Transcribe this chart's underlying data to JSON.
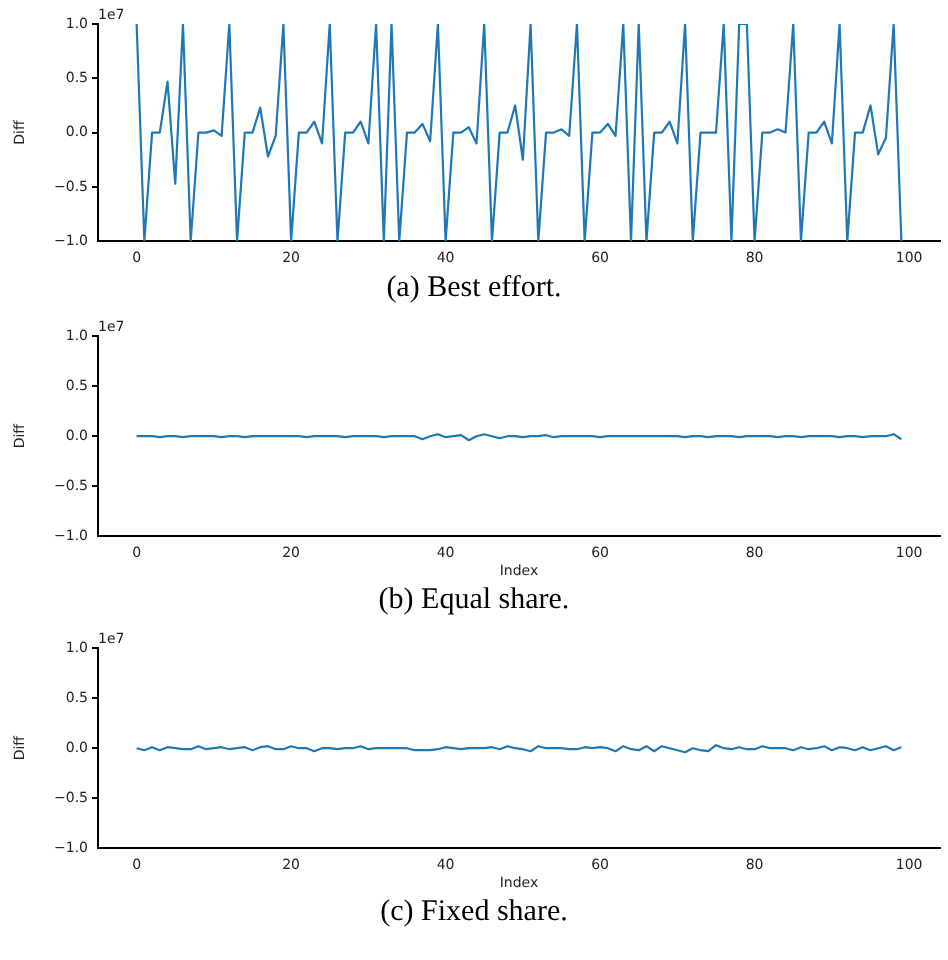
{
  "chart_data": [
    {
      "type": "line",
      "title": "(a) Best effort.",
      "ylabel": "Diff",
      "annotations": [
        "1e7"
      ],
      "marker": "none",
      "grid": false,
      "legend": false,
      "xlim": [
        -5,
        104
      ],
      "xticks": [
        0,
        20,
        40,
        60,
        80,
        100
      ],
      "ylim": [
        -1,
        1
      ],
      "yticks": [
        {
          "value": -1,
          "label": "−1.0"
        },
        {
          "value": -0.5,
          "label": "−0.5"
        },
        {
          "value": 0,
          "label": "0.0"
        },
        {
          "value": 0.5,
          "label": "0.5"
        },
        {
          "value": 1,
          "label": "1.0"
        }
      ],
      "x": [
        0,
        1,
        2,
        3,
        4,
        5,
        6,
        7,
        8,
        9,
        10,
        11,
        12,
        13,
        14,
        15,
        16,
        17,
        18,
        19,
        20,
        21,
        22,
        23,
        24,
        25,
        26,
        27,
        28,
        29,
        30,
        31,
        32,
        33,
        34,
        35,
        36,
        37,
        38,
        39,
        40,
        41,
        42,
        43,
        44,
        45,
        46,
        47,
        48,
        49,
        50,
        51,
        52,
        53,
        54,
        55,
        56,
        57,
        58,
        59,
        60,
        61,
        62,
        63,
        64,
        65,
        66,
        67,
        68,
        69,
        70,
        71,
        72,
        73,
        74,
        75,
        76,
        77,
        78,
        79,
        80,
        81,
        82,
        83,
        84,
        85,
        86,
        87,
        88,
        89,
        90,
        91,
        92,
        93,
        94,
        95,
        96,
        97,
        98,
        99
      ],
      "series": [
        {
          "color": "#1f77b4",
          "values": [
            1,
            -1,
            0,
            0,
            0.47,
            -0.47,
            1,
            -1,
            0,
            0,
            0.02,
            -0.03,
            1,
            -1,
            0,
            0,
            0.23,
            -0.22,
            -0.03,
            1,
            -1,
            0,
            0,
            0.1,
            -0.1,
            1,
            -1,
            0,
            0,
            0.1,
            -0.1,
            1,
            -1,
            1,
            -1,
            0,
            0,
            0.08,
            -0.08,
            1,
            -1,
            0,
            0,
            0.05,
            -0.1,
            1,
            -1,
            0,
            0,
            0.25,
            -0.25,
            1,
            -1,
            0,
            0,
            0.03,
            -0.03,
            1,
            -1,
            0,
            0,
            0.08,
            -0.03,
            1,
            -1,
            1,
            -1,
            0,
            0,
            0.1,
            -0.1,
            1,
            -1,
            0,
            0,
            0,
            1,
            -1,
            1,
            1,
            -1,
            0,
            0,
            0.03,
            0,
            1,
            -1,
            0,
            0,
            0.1,
            -0.1,
            1,
            -1,
            0,
            0,
            0.25,
            -0.2,
            -0.05,
            1,
            -1
          ]
        }
      ]
    },
    {
      "type": "line",
      "title": "(b) Equal share.",
      "xlabel": "Index",
      "ylabel": "Diff",
      "annotations": [
        "1e7"
      ],
      "marker": "none",
      "grid": false,
      "legend": false,
      "xlim": [
        -5,
        104
      ],
      "xticks": [
        0,
        20,
        40,
        60,
        80,
        100
      ],
      "ylim": [
        -1,
        1
      ],
      "yticks": [
        {
          "value": -1,
          "label": "−1.0"
        },
        {
          "value": -0.5,
          "label": "−0.5"
        },
        {
          "value": 0,
          "label": "0.0"
        },
        {
          "value": 0.5,
          "label": "0.5"
        },
        {
          "value": 1,
          "label": "1.0"
        }
      ],
      "x": [
        0,
        1,
        2,
        3,
        4,
        5,
        6,
        7,
        8,
        9,
        10,
        11,
        12,
        13,
        14,
        15,
        16,
        17,
        18,
        19,
        20,
        21,
        22,
        23,
        24,
        25,
        26,
        27,
        28,
        29,
        30,
        31,
        32,
        33,
        34,
        35,
        36,
        37,
        38,
        39,
        40,
        41,
        42,
        43,
        44,
        45,
        46,
        47,
        48,
        49,
        50,
        51,
        52,
        53,
        54,
        55,
        56,
        57,
        58,
        59,
        60,
        61,
        62,
        63,
        64,
        65,
        66,
        67,
        68,
        69,
        70,
        71,
        72,
        73,
        74,
        75,
        76,
        77,
        78,
        79,
        80,
        81,
        82,
        83,
        84,
        85,
        86,
        87,
        88,
        89,
        90,
        91,
        92,
        93,
        94,
        95,
        96,
        97,
        98,
        99
      ],
      "series": [
        {
          "color": "#1f77b4",
          "values": [
            0,
            0,
            0,
            -0.01,
            0,
            0,
            -0.01,
            0,
            0,
            0,
            0,
            -0.01,
            0,
            0,
            -0.01,
            0,
            0,
            0,
            0,
            0,
            0,
            0,
            -0.01,
            0,
            0,
            0,
            0,
            -0.01,
            0,
            0,
            0,
            0,
            -0.01,
            0,
            0,
            0,
            0,
            -0.03,
            0,
            0.02,
            -0.01,
            0,
            0.01,
            -0.04,
            0,
            0.02,
            0,
            -0.02,
            0,
            0,
            -0.01,
            0,
            0,
            0.01,
            -0.01,
            0,
            0,
            0,
            0,
            0,
            -0.01,
            0,
            0,
            0,
            0,
            0,
            0,
            0,
            0,
            0,
            0,
            -0.01,
            0,
            0,
            -0.01,
            0,
            0,
            0,
            -0.01,
            0,
            0,
            0,
            0,
            -0.01,
            0,
            0,
            -0.01,
            0,
            0,
            0,
            0,
            -0.01,
            0,
            0,
            -0.01,
            0,
            0,
            0,
            0.02,
            -0.03
          ]
        }
      ]
    },
    {
      "type": "line",
      "title": "(c) Fixed share.",
      "xlabel": "Index",
      "ylabel": "Diff",
      "annotations": [
        "1e7"
      ],
      "marker": "none",
      "grid": false,
      "legend": false,
      "xlim": [
        -5,
        104
      ],
      "xticks": [
        0,
        20,
        40,
        60,
        80,
        100
      ],
      "ylim": [
        -1,
        1
      ],
      "yticks": [
        {
          "value": -1,
          "label": "−1.0"
        },
        {
          "value": -0.5,
          "label": "−0.5"
        },
        {
          "value": 0,
          "label": "0.0"
        },
        {
          "value": 0.5,
          "label": "0.5"
        },
        {
          "value": 1,
          "label": "1.0"
        }
      ],
      "x": [
        0,
        1,
        2,
        3,
        4,
        5,
        6,
        7,
        8,
        9,
        10,
        11,
        12,
        13,
        14,
        15,
        16,
        17,
        18,
        19,
        20,
        21,
        22,
        23,
        24,
        25,
        26,
        27,
        28,
        29,
        30,
        31,
        32,
        33,
        34,
        35,
        36,
        37,
        38,
        39,
        40,
        41,
        42,
        43,
        44,
        45,
        46,
        47,
        48,
        49,
        50,
        51,
        52,
        53,
        54,
        55,
        56,
        57,
        58,
        59,
        60,
        61,
        62,
        63,
        64,
        65,
        66,
        67,
        68,
        69,
        70,
        71,
        72,
        73,
        74,
        75,
        76,
        77,
        78,
        79,
        80,
        81,
        82,
        83,
        84,
        85,
        86,
        87,
        88,
        89,
        90,
        91,
        92,
        93,
        94,
        95,
        96,
        97,
        98,
        99
      ],
      "series": [
        {
          "color": "#1f77b4",
          "values": [
            0,
            -0.02,
            0.01,
            -0.02,
            0.01,
            0,
            -0.01,
            -0.01,
            0.02,
            -0.01,
            0,
            0.01,
            -0.01,
            0,
            0.01,
            -0.02,
            0.01,
            0.02,
            -0.01,
            -0.01,
            0.02,
            0,
            0,
            -0.03,
            0,
            0,
            -0.01,
            0,
            0,
            0.02,
            -0.01,
            0,
            0,
            0,
            0,
            0,
            -0.02,
            -0.02,
            -0.02,
            -0.01,
            0.01,
            0,
            -0.01,
            0,
            0,
            0,
            0.01,
            -0.01,
            0.02,
            0,
            -0.01,
            -0.03,
            0.02,
            0,
            0,
            0,
            -0.01,
            -0.01,
            0.01,
            0,
            0.01,
            0,
            -0.03,
            0.02,
            -0.01,
            -0.02,
            0.02,
            -0.03,
            0.02,
            0,
            -0.02,
            -0.04,
            0,
            -0.02,
            -0.03,
            0.03,
            0,
            -0.01,
            0.01,
            -0.01,
            -0.01,
            0.02,
            0,
            0,
            0,
            -0.02,
            0.01,
            -0.01,
            0,
            0.02,
            -0.02,
            0.01,
            0,
            -0.02,
            0.01,
            -0.02,
            0,
            0.02,
            -0.02,
            0.01
          ]
        }
      ]
    }
  ]
}
